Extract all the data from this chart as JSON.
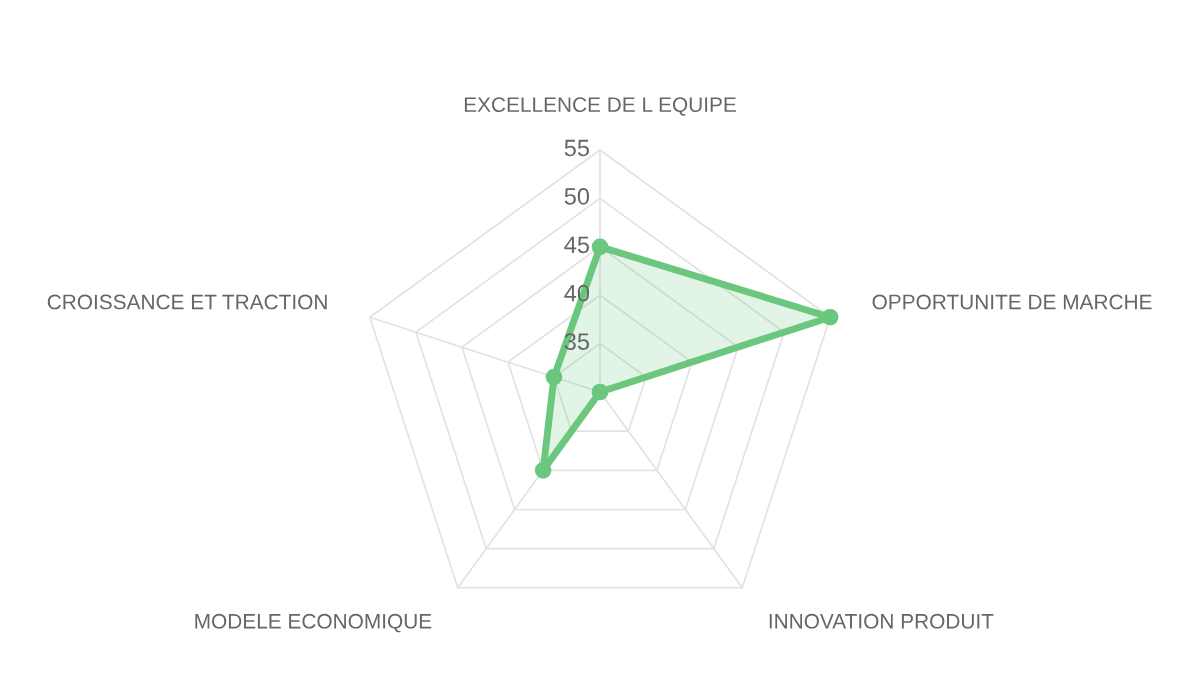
{
  "chart_data": {
    "type": "radar",
    "categories": [
      "EXCELLENCE DE L EQUIPE",
      "OPPORTUNITE DE MARCHE",
      "INNOVATION PRODUIT",
      "MODELE ECONOMIQUE",
      "CROISSANCE ET TRACTION"
    ],
    "series": [
      {
        "color": "#6cc77e",
        "values": [
          45,
          55,
          30,
          40,
          35
        ]
      }
    ],
    "ylim": [
      30,
      55
    ],
    "yticks": [
      35,
      40,
      45,
      50,
      55
    ],
    "grid": true,
    "marker": "circle",
    "line_style": "solid"
  }
}
